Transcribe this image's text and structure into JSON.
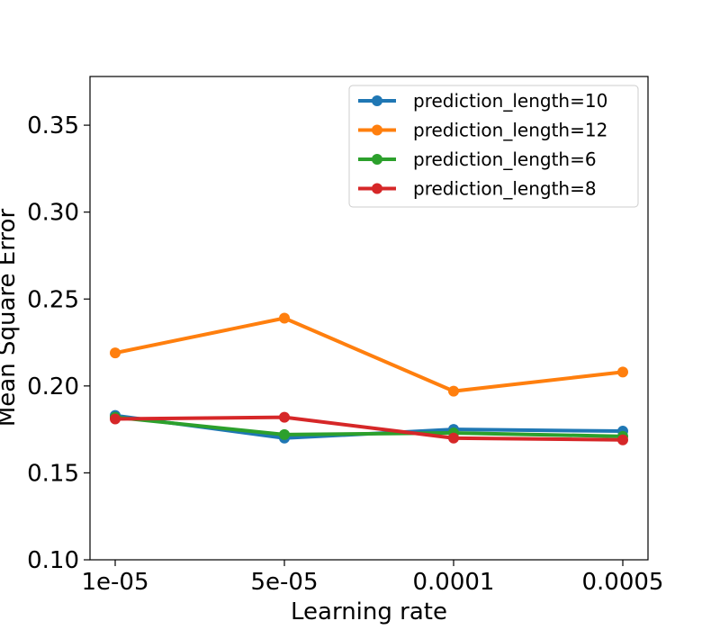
{
  "chart_data": {
    "type": "line",
    "title": "",
    "xlabel": "Learning rate",
    "ylabel": "Mean Square Error",
    "categories": [
      "1e-05",
      "5e-05",
      "0.0001",
      "0.0005"
    ],
    "ylim": [
      0.1,
      0.378
    ],
    "yticks": [
      0.1,
      0.15,
      0.2,
      0.25,
      0.3,
      0.35
    ],
    "ytick_labels": [
      "0.10",
      "0.15",
      "0.20",
      "0.25",
      "0.30",
      "0.35"
    ],
    "grid": false,
    "legend_position": "top-right",
    "series": [
      {
        "name": "prediction_length=10",
        "color": "#1f77b4",
        "values": [
          0.183,
          0.17,
          0.175,
          0.174
        ]
      },
      {
        "name": "prediction_length=12",
        "color": "#ff7f0e",
        "values": [
          0.219,
          0.239,
          0.197,
          0.208
        ]
      },
      {
        "name": "prediction_length=6",
        "color": "#2ca02c",
        "values": [
          0.182,
          0.172,
          0.173,
          0.171
        ]
      },
      {
        "name": "prediction_length=8",
        "color": "#d62728",
        "values": [
          0.181,
          0.182,
          0.17,
          0.169
        ]
      }
    ]
  }
}
